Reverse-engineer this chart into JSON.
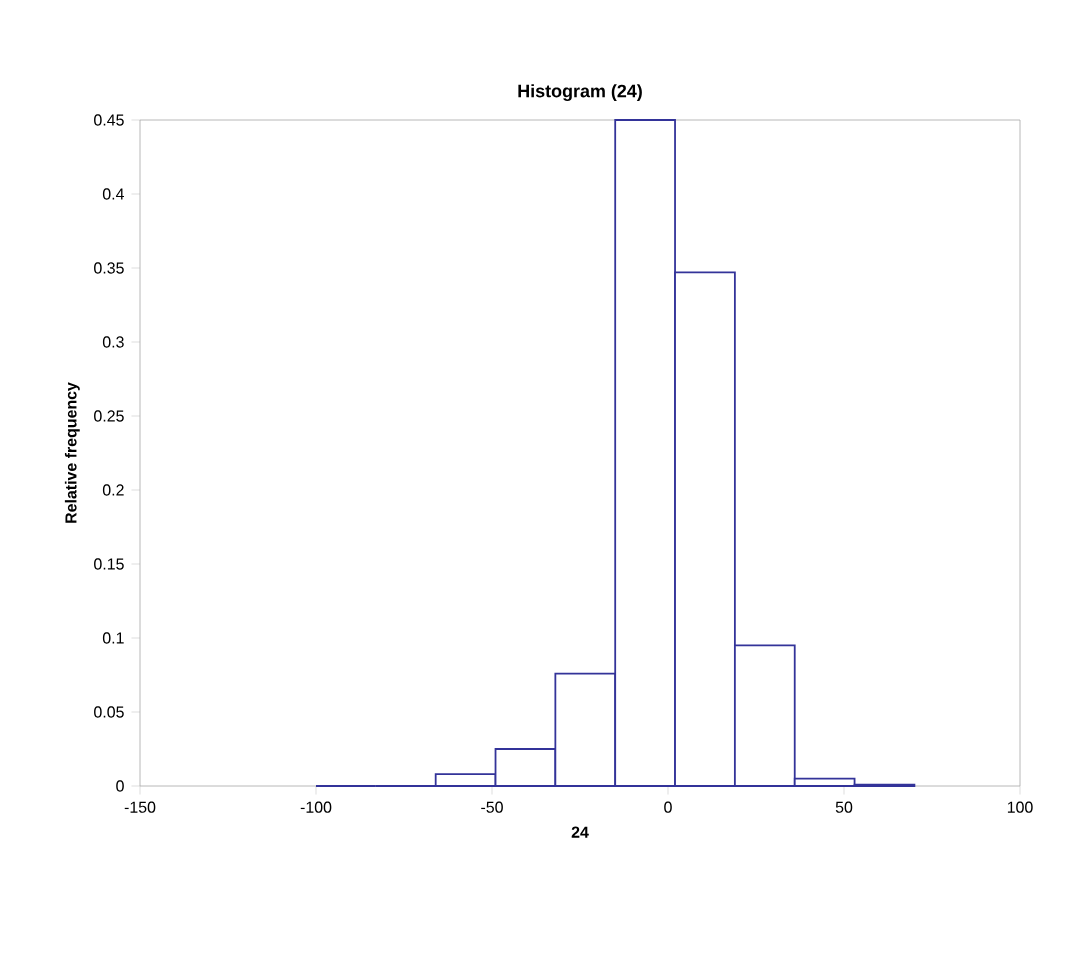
{
  "chart_data": {
    "type": "histogram",
    "title": "Histogram (24)",
    "xlabel": "24",
    "ylabel": "Relative frequency",
    "bins": [
      -100,
      -83,
      -66,
      -49,
      -32,
      -15,
      2,
      19,
      36,
      53,
      70
    ],
    "values": [
      0,
      0,
      0.008,
      0.025,
      0.076,
      0.45,
      0.347,
      0.095,
      0.005,
      0.001
    ],
    "color": "#333399",
    "xlim": [
      -150,
      100
    ],
    "xticks": [
      -150,
      -100,
      -50,
      0,
      50,
      100
    ],
    "ylim": [
      0,
      0.45
    ],
    "yticks": [
      0,
      0.05,
      0.1,
      0.15,
      0.2,
      0.25,
      0.3,
      0.35,
      0.4,
      0.45
    ],
    "grid": false
  }
}
